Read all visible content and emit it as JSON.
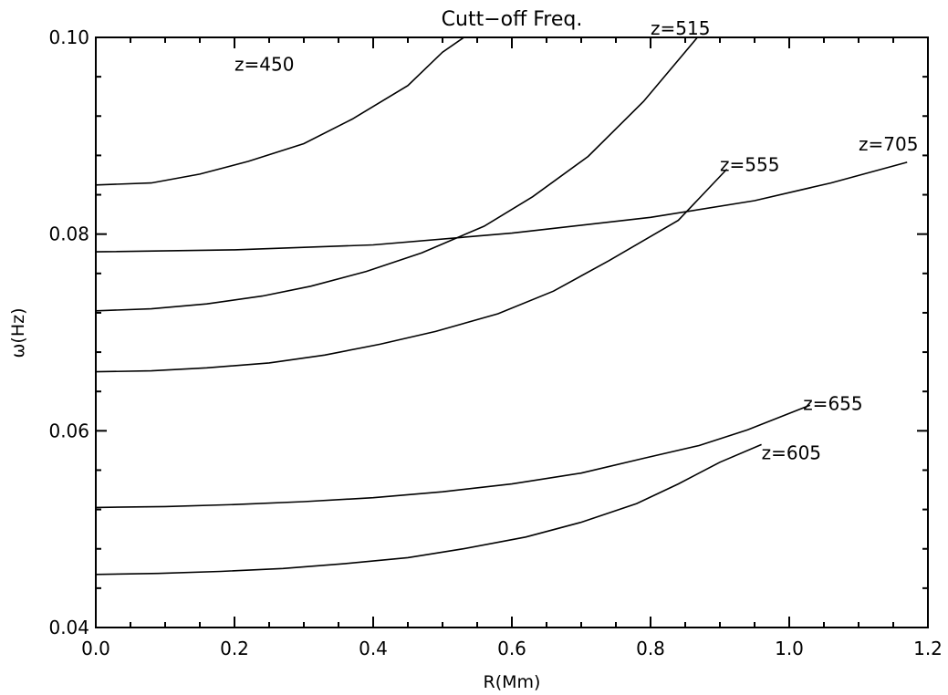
{
  "chart_data": {
    "type": "line",
    "title": "Cutt−off Freq.",
    "xlabel": "R(Mm)",
    "ylabel": "ω(Hz)",
    "xlim": [
      0.0,
      1.2
    ],
    "ylim": [
      0.04,
      0.1
    ],
    "x_ticks": [
      "0.0",
      "0.2",
      "0.4",
      "0.6",
      "0.8",
      "1.0",
      "1.2"
    ],
    "y_ticks": [
      "0.04",
      "0.06",
      "0.08",
      "0.10"
    ],
    "grid": false,
    "series": [
      {
        "name": "z=450",
        "x": [
          0.0,
          0.08,
          0.15,
          0.22,
          0.3,
          0.37,
          0.45,
          0.5,
          0.535
        ],
        "y": [
          0.085,
          0.0852,
          0.0861,
          0.0874,
          0.0892,
          0.0917,
          0.0951,
          0.0985,
          0.1002
        ]
      },
      {
        "name": "z=515",
        "x": [
          0.0,
          0.08,
          0.16,
          0.24,
          0.31,
          0.39,
          0.47,
          0.56,
          0.63,
          0.71,
          0.79,
          0.87
        ],
        "y": [
          0.0722,
          0.0724,
          0.0729,
          0.0737,
          0.0747,
          0.0762,
          0.0781,
          0.0808,
          0.0838,
          0.0879,
          0.0935,
          0.1002
        ]
      },
      {
        "name": "z=555",
        "x": [
          0.0,
          0.08,
          0.16,
          0.25,
          0.33,
          0.41,
          0.49,
          0.58,
          0.66,
          0.74,
          0.84,
          0.91
        ],
        "y": [
          0.066,
          0.0661,
          0.0664,
          0.0669,
          0.0677,
          0.0688,
          0.0701,
          0.0719,
          0.0742,
          0.0773,
          0.0814,
          0.0866
        ]
      },
      {
        "name": "z=705",
        "x": [
          0.0,
          0.2,
          0.4,
          0.6,
          0.8,
          0.95,
          1.06,
          1.17
        ],
        "y": [
          0.0782,
          0.0784,
          0.0789,
          0.0801,
          0.0817,
          0.0834,
          0.0852,
          0.0873
        ]
      },
      {
        "name": "z=655",
        "x": [
          0.0,
          0.1,
          0.2,
          0.3,
          0.4,
          0.5,
          0.6,
          0.7,
          0.79,
          0.87,
          0.94,
          1.03
        ],
        "y": [
          0.0522,
          0.0523,
          0.0525,
          0.0528,
          0.0532,
          0.0538,
          0.0546,
          0.0557,
          0.0572,
          0.0585,
          0.0601,
          0.0626
        ]
      },
      {
        "name": "z=605",
        "x": [
          0.0,
          0.09,
          0.18,
          0.27,
          0.36,
          0.45,
          0.53,
          0.62,
          0.7,
          0.78,
          0.84,
          0.9,
          0.96
        ],
        "y": [
          0.0454,
          0.0455,
          0.0457,
          0.046,
          0.0465,
          0.0471,
          0.048,
          0.0492,
          0.0507,
          0.0526,
          0.0546,
          0.0568,
          0.0586
        ]
      }
    ],
    "annotations": [
      "z=450",
      "z=515",
      "z=555",
      "z=705",
      "z=655",
      "z=605"
    ]
  }
}
